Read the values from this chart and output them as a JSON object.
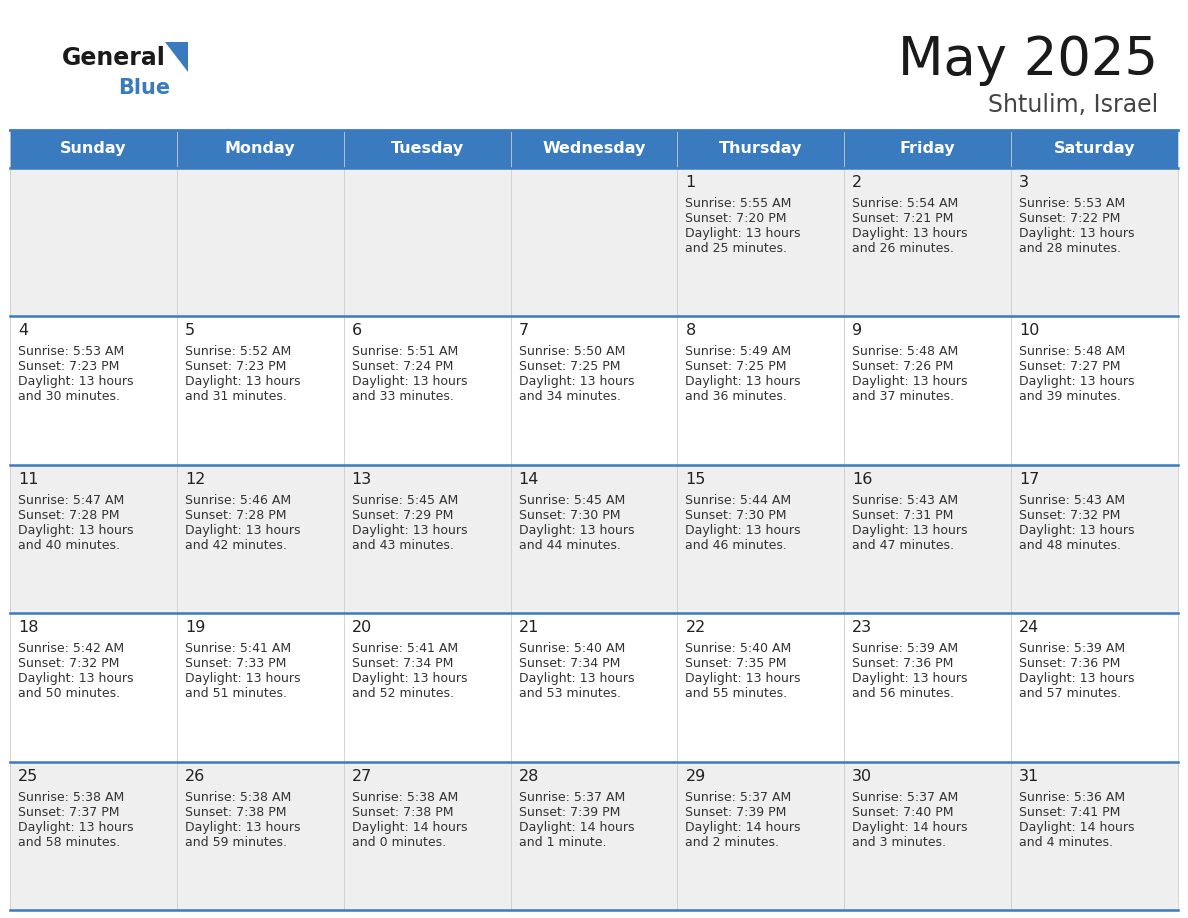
{
  "title": "May 2025",
  "subtitle": "Shtulim, Israel",
  "header_bg": "#3A7BBF",
  "header_text": "#FFFFFF",
  "weekdays": [
    "Sunday",
    "Monday",
    "Tuesday",
    "Wednesday",
    "Thursday",
    "Friday",
    "Saturday"
  ],
  "row_bg_odd": "#EFEFEF",
  "row_bg_even": "#FFFFFF",
  "day_number_color": "#222222",
  "text_color": "#333333",
  "grid_line_color": "#3A7BBF",
  "logo_general_color": "#1a1a1a",
  "logo_blue_color": "#3A7BBF",
  "logo_triangle_color": "#3A7BBF",
  "title_color": "#1a1a1a",
  "subtitle_color": "#444444",
  "calendar": [
    [
      {
        "day": "",
        "sunrise": "",
        "sunset": "",
        "daylight_line1": "",
        "daylight_line2": ""
      },
      {
        "day": "",
        "sunrise": "",
        "sunset": "",
        "daylight_line1": "",
        "daylight_line2": ""
      },
      {
        "day": "",
        "sunrise": "",
        "sunset": "",
        "daylight_line1": "",
        "daylight_line2": ""
      },
      {
        "day": "",
        "sunrise": "",
        "sunset": "",
        "daylight_line1": "",
        "daylight_line2": ""
      },
      {
        "day": "1",
        "sunrise": "5:55 AM",
        "sunset": "7:20 PM",
        "daylight_line1": "Daylight: 13 hours",
        "daylight_line2": "and 25 minutes."
      },
      {
        "day": "2",
        "sunrise": "5:54 AM",
        "sunset": "7:21 PM",
        "daylight_line1": "Daylight: 13 hours",
        "daylight_line2": "and 26 minutes."
      },
      {
        "day": "3",
        "sunrise": "5:53 AM",
        "sunset": "7:22 PM",
        "daylight_line1": "Daylight: 13 hours",
        "daylight_line2": "and 28 minutes."
      }
    ],
    [
      {
        "day": "4",
        "sunrise": "5:53 AM",
        "sunset": "7:23 PM",
        "daylight_line1": "Daylight: 13 hours",
        "daylight_line2": "and 30 minutes."
      },
      {
        "day": "5",
        "sunrise": "5:52 AM",
        "sunset": "7:23 PM",
        "daylight_line1": "Daylight: 13 hours",
        "daylight_line2": "and 31 minutes."
      },
      {
        "day": "6",
        "sunrise": "5:51 AM",
        "sunset": "7:24 PM",
        "daylight_line1": "Daylight: 13 hours",
        "daylight_line2": "and 33 minutes."
      },
      {
        "day": "7",
        "sunrise": "5:50 AM",
        "sunset": "7:25 PM",
        "daylight_line1": "Daylight: 13 hours",
        "daylight_line2": "and 34 minutes."
      },
      {
        "day": "8",
        "sunrise": "5:49 AM",
        "sunset": "7:25 PM",
        "daylight_line1": "Daylight: 13 hours",
        "daylight_line2": "and 36 minutes."
      },
      {
        "day": "9",
        "sunrise": "5:48 AM",
        "sunset": "7:26 PM",
        "daylight_line1": "Daylight: 13 hours",
        "daylight_line2": "and 37 minutes."
      },
      {
        "day": "10",
        "sunrise": "5:48 AM",
        "sunset": "7:27 PM",
        "daylight_line1": "Daylight: 13 hours",
        "daylight_line2": "and 39 minutes."
      }
    ],
    [
      {
        "day": "11",
        "sunrise": "5:47 AM",
        "sunset": "7:28 PM",
        "daylight_line1": "Daylight: 13 hours",
        "daylight_line2": "and 40 minutes."
      },
      {
        "day": "12",
        "sunrise": "5:46 AM",
        "sunset": "7:28 PM",
        "daylight_line1": "Daylight: 13 hours",
        "daylight_line2": "and 42 minutes."
      },
      {
        "day": "13",
        "sunrise": "5:45 AM",
        "sunset": "7:29 PM",
        "daylight_line1": "Daylight: 13 hours",
        "daylight_line2": "and 43 minutes."
      },
      {
        "day": "14",
        "sunrise": "5:45 AM",
        "sunset": "7:30 PM",
        "daylight_line1": "Daylight: 13 hours",
        "daylight_line2": "and 44 minutes."
      },
      {
        "day": "15",
        "sunrise": "5:44 AM",
        "sunset": "7:30 PM",
        "daylight_line1": "Daylight: 13 hours",
        "daylight_line2": "and 46 minutes."
      },
      {
        "day": "16",
        "sunrise": "5:43 AM",
        "sunset": "7:31 PM",
        "daylight_line1": "Daylight: 13 hours",
        "daylight_line2": "and 47 minutes."
      },
      {
        "day": "17",
        "sunrise": "5:43 AM",
        "sunset": "7:32 PM",
        "daylight_line1": "Daylight: 13 hours",
        "daylight_line2": "and 48 minutes."
      }
    ],
    [
      {
        "day": "18",
        "sunrise": "5:42 AM",
        "sunset": "7:32 PM",
        "daylight_line1": "Daylight: 13 hours",
        "daylight_line2": "and 50 minutes."
      },
      {
        "day": "19",
        "sunrise": "5:41 AM",
        "sunset": "7:33 PM",
        "daylight_line1": "Daylight: 13 hours",
        "daylight_line2": "and 51 minutes."
      },
      {
        "day": "20",
        "sunrise": "5:41 AM",
        "sunset": "7:34 PM",
        "daylight_line1": "Daylight: 13 hours",
        "daylight_line2": "and 52 minutes."
      },
      {
        "day": "21",
        "sunrise": "5:40 AM",
        "sunset": "7:34 PM",
        "daylight_line1": "Daylight: 13 hours",
        "daylight_line2": "and 53 minutes."
      },
      {
        "day": "22",
        "sunrise": "5:40 AM",
        "sunset": "7:35 PM",
        "daylight_line1": "Daylight: 13 hours",
        "daylight_line2": "and 55 minutes."
      },
      {
        "day": "23",
        "sunrise": "5:39 AM",
        "sunset": "7:36 PM",
        "daylight_line1": "Daylight: 13 hours",
        "daylight_line2": "and 56 minutes."
      },
      {
        "day": "24",
        "sunrise": "5:39 AM",
        "sunset": "7:36 PM",
        "daylight_line1": "Daylight: 13 hours",
        "daylight_line2": "and 57 minutes."
      }
    ],
    [
      {
        "day": "25",
        "sunrise": "5:38 AM",
        "sunset": "7:37 PM",
        "daylight_line1": "Daylight: 13 hours",
        "daylight_line2": "and 58 minutes."
      },
      {
        "day": "26",
        "sunrise": "5:38 AM",
        "sunset": "7:38 PM",
        "daylight_line1": "Daylight: 13 hours",
        "daylight_line2": "and 59 minutes."
      },
      {
        "day": "27",
        "sunrise": "5:38 AM",
        "sunset": "7:38 PM",
        "daylight_line1": "Daylight: 14 hours",
        "daylight_line2": "and 0 minutes."
      },
      {
        "day": "28",
        "sunrise": "5:37 AM",
        "sunset": "7:39 PM",
        "daylight_line1": "Daylight: 14 hours",
        "daylight_line2": "and 1 minute."
      },
      {
        "day": "29",
        "sunrise": "5:37 AM",
        "sunset": "7:39 PM",
        "daylight_line1": "Daylight: 14 hours",
        "daylight_line2": "and 2 minutes."
      },
      {
        "day": "30",
        "sunrise": "5:37 AM",
        "sunset": "7:40 PM",
        "daylight_line1": "Daylight: 14 hours",
        "daylight_line2": "and 3 minutes."
      },
      {
        "day": "31",
        "sunrise": "5:36 AM",
        "sunset": "7:41 PM",
        "daylight_line1": "Daylight: 14 hours",
        "daylight_line2": "and 4 minutes."
      }
    ]
  ]
}
